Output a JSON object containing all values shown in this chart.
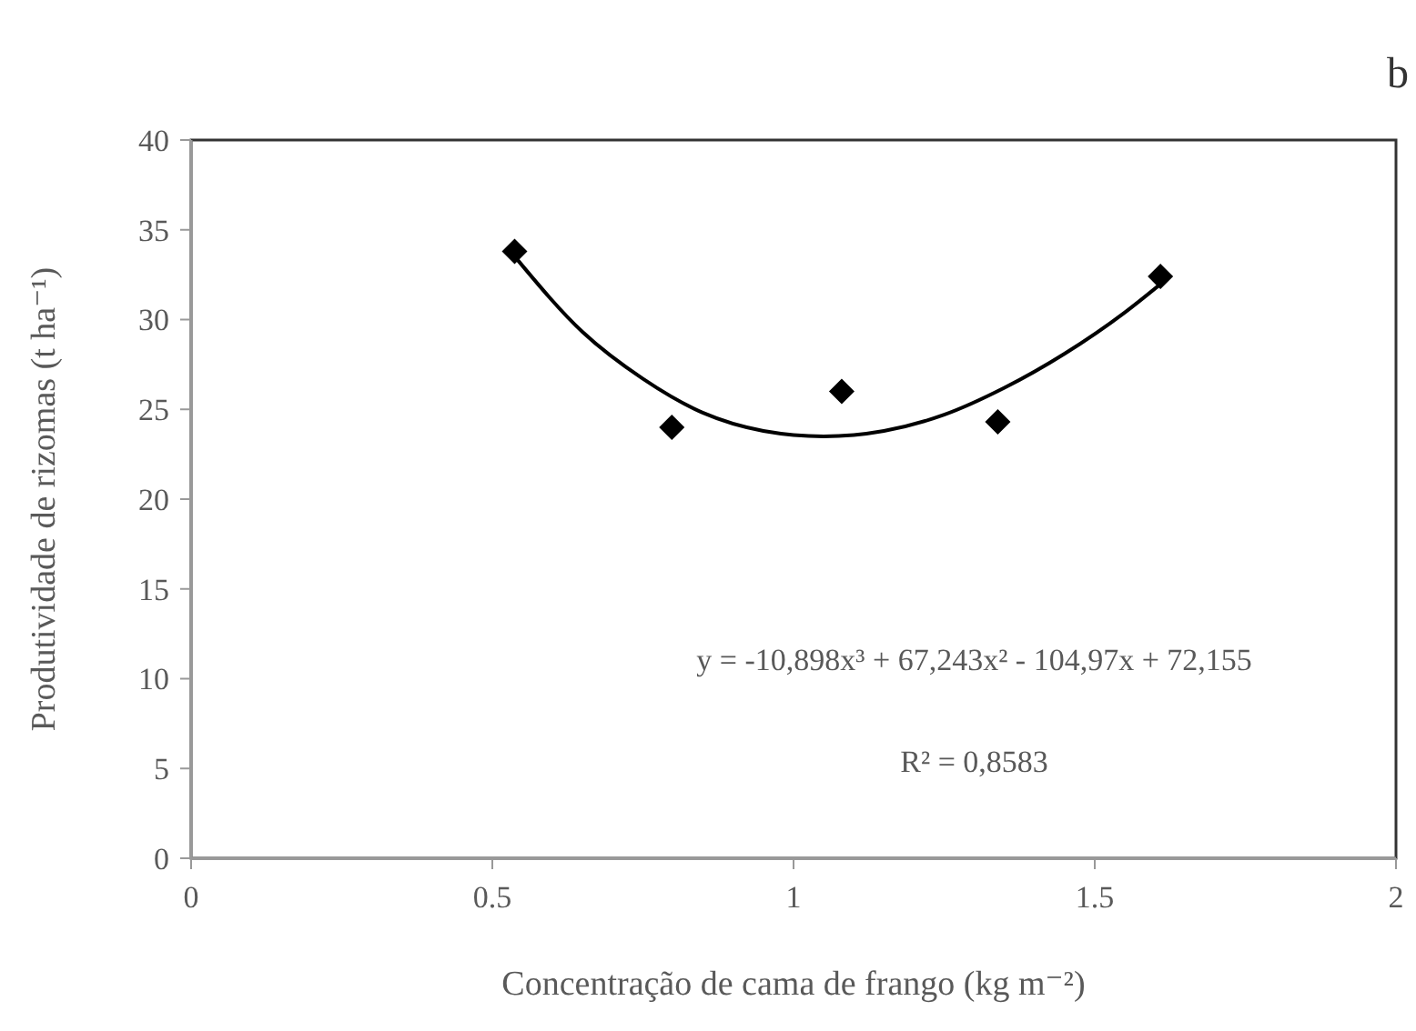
{
  "chart_data": {
    "type": "scatter",
    "title": "b",
    "xlabel": "Concentração de cama de frango (kg m⁻²)",
    "ylabel": "Produtividade de rizomas (t ha⁻¹)",
    "series": [
      {
        "color": "#000000",
        "marker": "diamond",
        "x": [
          0.537,
          0.798,
          1.08,
          1.339,
          1.609
        ],
        "values": [
          33.8,
          24.0,
          26.0,
          24.3,
          32.4
        ]
      },
      {
        "type": "line",
        "color": "#000000",
        "marker": "none",
        "line_style": "solid",
        "x": [
          0.54,
          0.65,
          0.75,
          0.85,
          0.95,
          1.05,
          1.15,
          1.25,
          1.35,
          1.45,
          1.55,
          1.61
        ],
        "values": [
          33.4,
          29.3,
          26.7,
          24.8,
          23.8,
          23.5,
          23.8,
          24.7,
          26.2,
          28.1,
          30.4,
          32.0
        ]
      }
    ],
    "annotations": [
      "y = -10,898x³ + 67,243x² - 104,97x + 72,155",
      "R² = 0,8583"
    ],
    "xlim": [
      0,
      2
    ],
    "xticks": [
      0,
      0.5,
      1,
      1.5,
      2
    ],
    "ylim": [
      0,
      40
    ],
    "yticks": [
      0,
      5,
      10,
      15,
      20,
      25,
      30,
      35,
      40
    ],
    "grid": false
  }
}
